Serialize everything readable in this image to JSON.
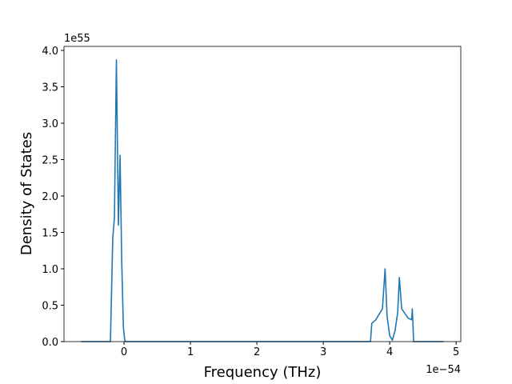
{
  "chart_data": {
    "type": "line",
    "xlabel": "Frequency (THz)",
    "ylabel": "Density of States",
    "x_offset_text": "1e−54",
    "y_offset_text": "1e55",
    "x": [
      -0.65,
      -0.205,
      -0.17,
      -0.145,
      -0.115,
      -0.085,
      -0.06,
      -0.035,
      -0.01,
      0.01,
      0.025,
      3.71,
      3.73,
      3.79,
      3.89,
      3.93,
      3.96,
      4.0,
      4.04,
      4.08,
      4.12,
      4.145,
      4.18,
      4.28,
      4.33,
      4.34,
      4.36,
      4.81
    ],
    "series": [
      {
        "color": "#1f77b4",
        "values": [
          0,
          0,
          1.42,
          1.7,
          3.87,
          1.6,
          2.56,
          1.1,
          0.2,
          0.02,
          0,
          0,
          0.25,
          0.3,
          0.45,
          1.0,
          0.35,
          0.08,
          0.02,
          0.15,
          0.4,
          0.88,
          0.45,
          0.32,
          0.3,
          0.45,
          0,
          0
        ]
      }
    ],
    "xlim": [
      -0.904,
      5.07
    ],
    "ylim": [
      0,
      4.055
    ],
    "xticks": [
      0,
      1,
      2,
      3,
      4,
      5
    ],
    "yticks": [
      {
        "value": 0,
        "label": "0.0"
      },
      0.5,
      {
        "value": 1,
        "label": "1.0"
      },
      1.5,
      {
        "value": 2,
        "label": "2.0"
      },
      2.5,
      {
        "value": 3,
        "label": "3.0"
      },
      3.5,
      {
        "value": 4,
        "label": "4.0"
      }
    ]
  }
}
